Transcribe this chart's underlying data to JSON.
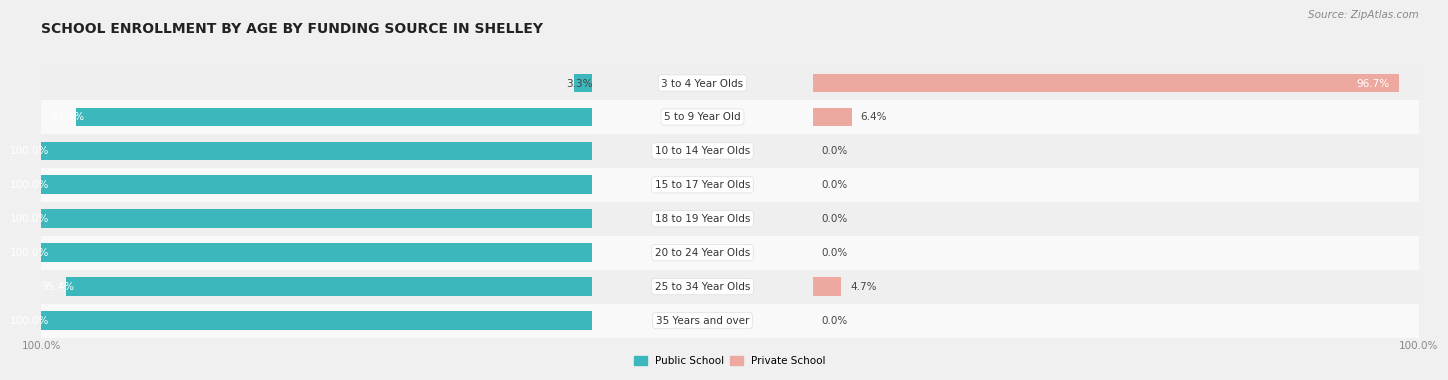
{
  "title": "SCHOOL ENROLLMENT BY AGE BY FUNDING SOURCE IN SHELLEY",
  "source": "Source: ZipAtlas.com",
  "categories": [
    "3 to 4 Year Olds",
    "5 to 9 Year Old",
    "10 to 14 Year Olds",
    "15 to 17 Year Olds",
    "18 to 19 Year Olds",
    "20 to 24 Year Olds",
    "25 to 34 Year Olds",
    "35 Years and over"
  ],
  "public_pct": [
    3.3,
    93.6,
    100.0,
    100.0,
    100.0,
    100.0,
    95.4,
    100.0
  ],
  "private_pct": [
    96.7,
    6.4,
    0.0,
    0.0,
    0.0,
    0.0,
    4.7,
    0.0
  ],
  "public_color": "#3cb8bc",
  "private_color": "#e8877a",
  "private_color_light": "#eda99f",
  "row_colors": [
    "#efefef",
    "#f9f9f9"
  ],
  "title_fontsize": 10,
  "bar_label_fontsize": 7.5,
  "cat_label_fontsize": 7.5,
  "bar_height": 0.55,
  "legend_labels": [
    "Public School",
    "Private School"
  ],
  "axis_label_color": "#888888"
}
